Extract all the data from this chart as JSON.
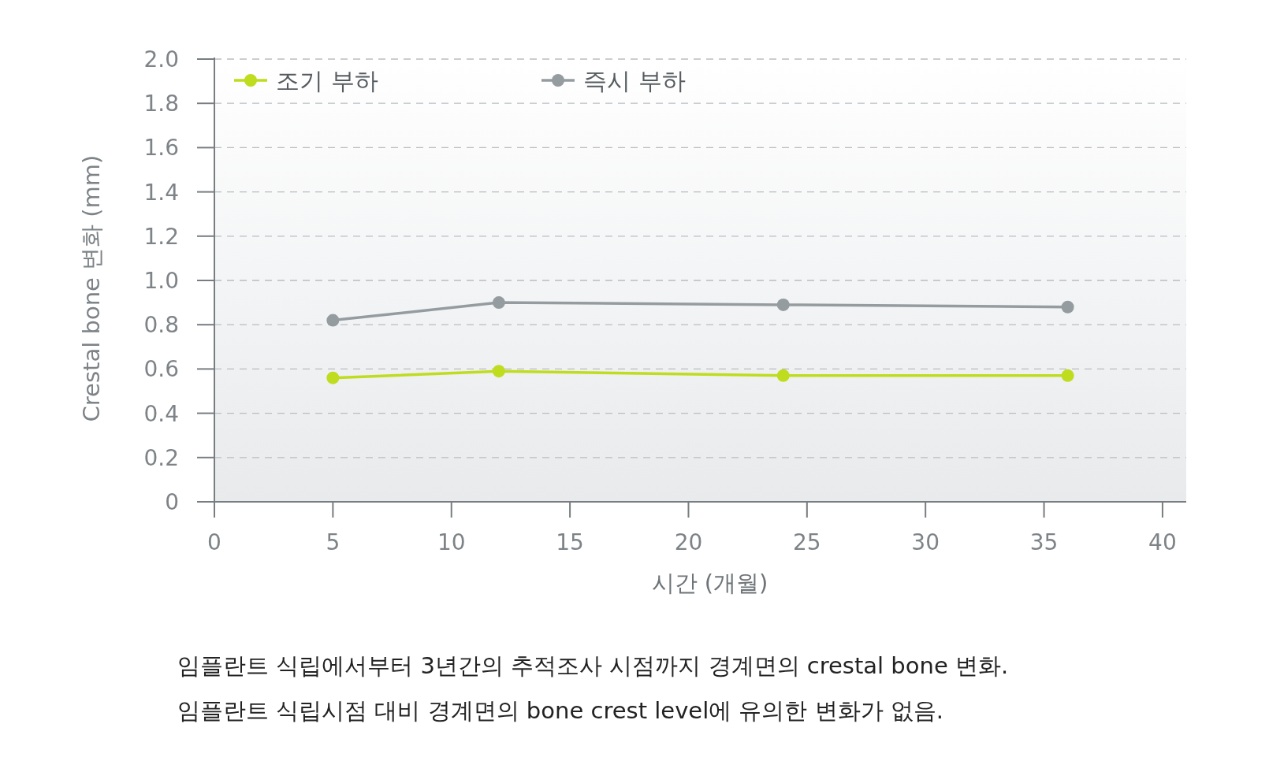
{
  "chart_data": {
    "type": "line",
    "xlabel": "시간 (개월)",
    "ylabel": "Crestal bone 변화 (mm)",
    "x": [
      5,
      12,
      24,
      36
    ],
    "series": [
      {
        "name": "조기 부하",
        "color": "#bfdc1e",
        "values": [
          0.56,
          0.59,
          0.57,
          0.57
        ]
      },
      {
        "name": "즉시 부하",
        "color": "#959ca0",
        "values": [
          0.82,
          0.9,
          0.89,
          0.88
        ]
      }
    ],
    "xlim": [
      0,
      41
    ],
    "xticks": [
      0,
      5,
      10,
      15,
      20,
      25,
      30,
      35,
      40
    ],
    "ylim": [
      0,
      2
    ],
    "yticks": [
      0,
      {
        "value": 0.2,
        "label": "0.2"
      },
      {
        "value": 0.4,
        "label": "0.4"
      },
      {
        "value": 0.6,
        "label": "0.6"
      },
      {
        "value": 0.8,
        "label": "0.8"
      },
      {
        "value": 1,
        "label": "1.0"
      },
      {
        "value": 1.2,
        "label": "1.2"
      },
      {
        "value": 1.4,
        "label": "1.4"
      },
      {
        "value": 1.6,
        "label": "1.6"
      },
      {
        "value": 1.8,
        "label": "1.8"
      },
      {
        "value": 2,
        "label": "2.0"
      }
    ],
    "grid": "y",
    "legend": "top left",
    "marker": "circle",
    "line_style": "solid",
    "annotations": [
      "임플란트 식립에서부터 3년간의 추적조사 시점까지 경계면의 crestal bone 변화.",
      "임플란트 식립시점 대비 경계면의 bone crest level에 유의한 변화가 없음."
    ]
  }
}
